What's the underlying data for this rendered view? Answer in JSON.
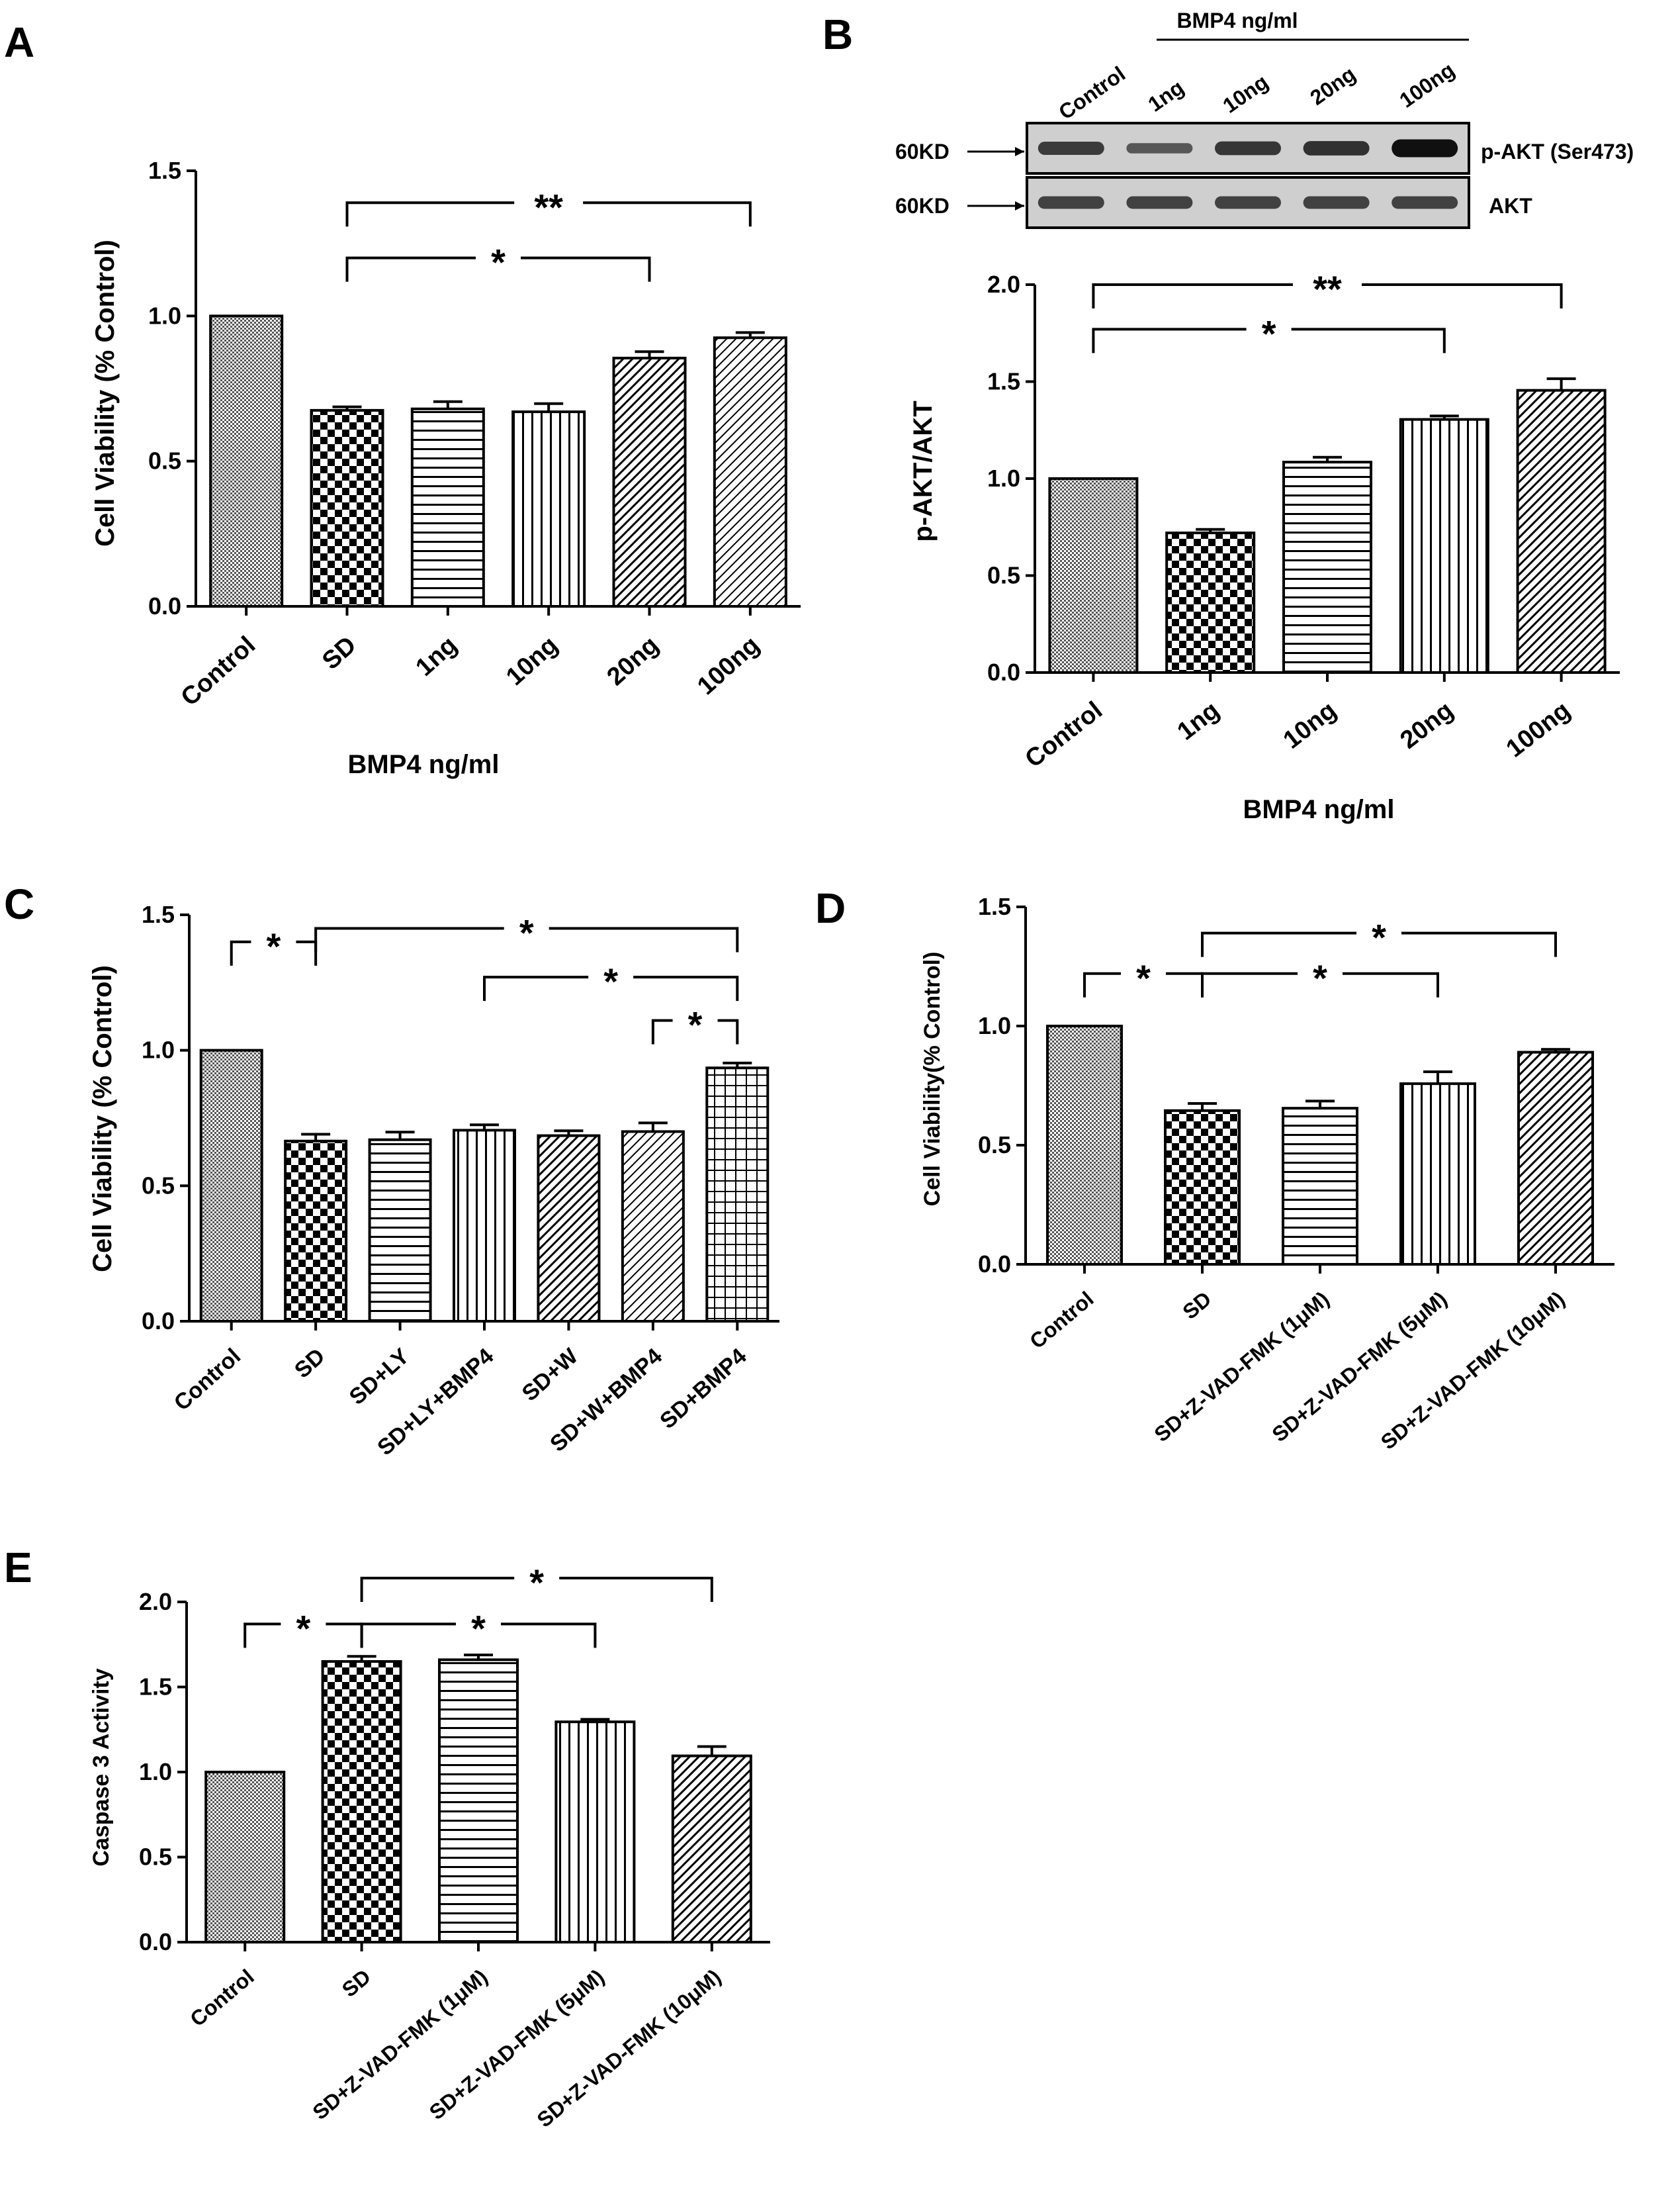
{
  "patterns": {
    "control": "dense",
    "checker": "checker",
    "hlines": "hlines",
    "vlines": "vlines",
    "diag": "diag",
    "diag2": "diag2",
    "grid": "grid"
  },
  "chart_data": [
    {
      "id": "A",
      "type": "bar",
      "panel_letter": "A",
      "categories": [
        "Control",
        "SD",
        "1ng",
        "10ng",
        "20ng",
        "100ng"
      ],
      "values": [
        1.0,
        0.675,
        0.68,
        0.67,
        0.855,
        0.925
      ],
      "errors": [
        0.0,
        0.012,
        0.025,
        0.028,
        0.022,
        0.018
      ],
      "fills": [
        "control",
        "checker",
        "hlines",
        "vlines",
        "diag",
        "diag2"
      ],
      "ylabel": "Cell Viability (% Control)",
      "xlabel": "BMP4 ng/ml",
      "ylim": [
        0,
        1.5
      ],
      "yticks": [
        0.0,
        0.5,
        1.0,
        1.5
      ],
      "tick_labels": [
        "0.0",
        "0.5",
        "1.0",
        "1.5"
      ],
      "significance": [
        {
          "from": 1,
          "to": 4,
          "level": 1.2,
          "text": "*"
        },
        {
          "from": 1,
          "to": 5,
          "level": 1.39,
          "text": "**"
        }
      ]
    },
    {
      "id": "B",
      "type": "bar",
      "panel_letter": "B",
      "categories": [
        "Control",
        "1ng",
        "10ng",
        "20ng",
        "100ng"
      ],
      "values": [
        1.0,
        0.72,
        1.085,
        1.305,
        1.455
      ],
      "errors": [
        0.0,
        0.018,
        0.025,
        0.018,
        0.06
      ],
      "fills": [
        "control",
        "checker",
        "hlines",
        "vlines",
        "diag"
      ],
      "ylabel": "p-AKT/AKT",
      "xlabel": "BMP4 ng/ml",
      "ylim": [
        0,
        2.0
      ],
      "yticks": [
        0.0,
        0.5,
        1.0,
        1.5,
        2.0
      ],
      "tick_labels": [
        "0.0",
        "0.5",
        "1.0",
        "1.5",
        "2.0"
      ],
      "significance": [
        {
          "from": 0,
          "to": 3,
          "level": 1.77,
          "text": "*"
        },
        {
          "from": 0,
          "to": 4,
          "level": 2.0,
          "text": "**"
        }
      ]
    },
    {
      "id": "C",
      "type": "bar",
      "panel_letter": "C",
      "categories": [
        "Control",
        "SD",
        "SD+LY",
        "SD+LY+BMP4",
        "SD+W",
        "SD+W+BMP4",
        "SD+BMP4"
      ],
      "values": [
        1.0,
        0.665,
        0.67,
        0.705,
        0.685,
        0.7,
        0.935
      ],
      "errors": [
        0.0,
        0.025,
        0.028,
        0.02,
        0.018,
        0.032,
        0.018
      ],
      "fills": [
        "control",
        "checker",
        "hlines",
        "vlines",
        "diag",
        "diag2",
        "grid"
      ],
      "ylabel": "Cell Viability (% Control)",
      "xlabel": "",
      "ylim": [
        0,
        1.5
      ],
      "yticks": [
        0.0,
        0.5,
        1.0,
        1.5
      ],
      "tick_labels": [
        "0.0",
        "0.5",
        "1.0",
        "1.5"
      ],
      "significance": [
        {
          "from": 0,
          "to": 1,
          "level": 1.4,
          "text": "*"
        },
        {
          "from": 1,
          "to": 6,
          "level": 1.45,
          "text": "*"
        },
        {
          "from": 3,
          "to": 6,
          "level": 1.27,
          "text": "*"
        },
        {
          "from": 5,
          "to": 6,
          "level": 1.11,
          "text": "*"
        }
      ]
    },
    {
      "id": "D",
      "type": "bar",
      "panel_letter": "D",
      "categories": [
        "Control",
        "SD",
        "SD+Z-VAD-FMK (1μM)",
        "SD+Z-VAD-FMK (5μM)",
        "SD+Z-VAD-FMK (10μM)"
      ],
      "values": [
        1.0,
        0.645,
        0.655,
        0.758,
        0.89
      ],
      "errors": [
        0.0,
        0.03,
        0.03,
        0.05,
        0.012
      ],
      "fills": [
        "control",
        "checker",
        "hlines",
        "vlines",
        "diag"
      ],
      "ylabel": "Cell Viability(% Control)",
      "xlabel": "",
      "ylim": [
        0,
        1.5
      ],
      "yticks": [
        0.0,
        0.5,
        1.0,
        1.5
      ],
      "tick_labels": [
        "0.0",
        "0.5",
        "1.0",
        "1.5"
      ],
      "significance": [
        {
          "from": 0,
          "to": 1,
          "level": 1.22,
          "text": "*"
        },
        {
          "from": 1,
          "to": 3,
          "level": 1.22,
          "text": "*"
        },
        {
          "from": 1,
          "to": 4,
          "level": 1.39,
          "text": "*"
        }
      ]
    },
    {
      "id": "E",
      "type": "bar",
      "panel_letter": "E",
      "categories": [
        "Control",
        "SD",
        "SD+Z-VAD-FMK (1μM)",
        "SD+Z-VAD-FMK (5μM)",
        "SD+Z-VAD-FMK (10μM)"
      ],
      "values": [
        1.0,
        1.65,
        1.66,
        1.295,
        1.095
      ],
      "errors": [
        0.0,
        0.03,
        0.028,
        0.015,
        0.055
      ],
      "fills": [
        "control",
        "checker",
        "hlines",
        "vlines",
        "diag"
      ],
      "ylabel": "Caspase 3 Activity",
      "xlabel": "",
      "ylim": [
        0,
        2.0
      ],
      "yticks": [
        0.0,
        0.5,
        1.0,
        1.5,
        2.0
      ],
      "tick_labels": [
        "0.0",
        "0.5",
        "1.0",
        "1.5",
        "2.0"
      ],
      "significance": [
        {
          "from": 0,
          "to": 1,
          "level": 1.87,
          "text": "*"
        },
        {
          "from": 1,
          "to": 3,
          "level": 1.87,
          "text": "*"
        },
        {
          "from": 1,
          "to": 4,
          "level": 2.14,
          "text": "*"
        }
      ]
    }
  ],
  "western_blot": {
    "header": "BMP4 ng/ml",
    "lanes": [
      "Control",
      "1ng",
      "10ng",
      "20ng",
      "100ng"
    ],
    "rows": [
      {
        "marker": "60KD",
        "protein": "p-AKT (Ser473)",
        "intensities": [
          0.55,
          0.3,
          0.6,
          0.65,
          0.95
        ]
      },
      {
        "marker": "60KD",
        "protein": "AKT",
        "intensities": [
          0.5,
          0.5,
          0.5,
          0.5,
          0.5
        ]
      }
    ]
  }
}
